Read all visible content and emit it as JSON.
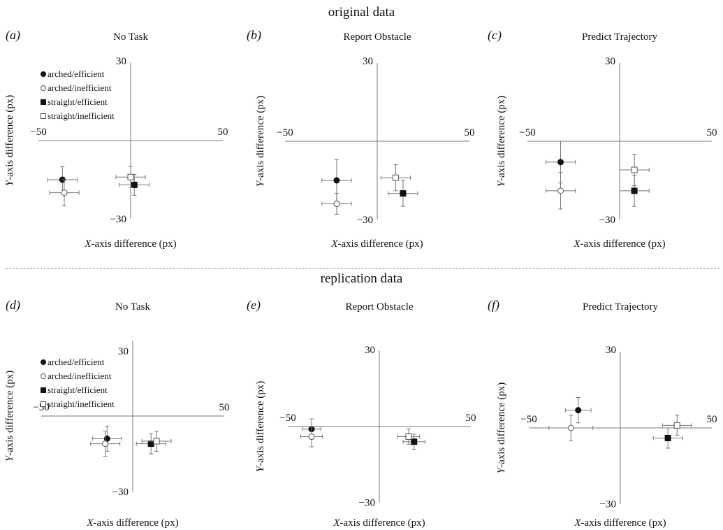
{
  "sections": [
    {
      "title": "original data"
    },
    {
      "title": "replication data"
    }
  ],
  "chart_data": [
    {
      "type": "scatter",
      "letter": "a",
      "title": "No Task",
      "show_legend": true,
      "xlabel_prefix": "X",
      "xlabel_rest": "-axis difference (px)",
      "ylabel_prefix": "Y",
      "ylabel_rest": "-axis difference (px)",
      "xlim": [
        -50,
        50
      ],
      "ylim": [
        -30,
        30
      ],
      "ticks": {
        "x_min": "−50",
        "x_max": "50",
        "y_min": "−30",
        "y_max": "30"
      },
      "series": [
        {
          "name": "arched/efficient",
          "marker": "circle-filled",
          "x": -37,
          "y": -15,
          "xerr": 8,
          "yerr": 5
        },
        {
          "name": "arched/inefficient",
          "marker": "circle-open",
          "x": -36,
          "y": -20,
          "xerr": 8,
          "yerr": 5
        },
        {
          "name": "straight/efficient",
          "marker": "square-filled",
          "x": 2,
          "y": -17,
          "xerr": 8,
          "yerr": 4
        },
        {
          "name": "straight/inefficient",
          "marker": "square-open",
          "x": 0,
          "y": -14,
          "xerr": 8,
          "yerr": 4
        }
      ]
    },
    {
      "type": "scatter",
      "letter": "b",
      "title": "Report Obstacle",
      "show_legend": false,
      "xlabel_prefix": "X",
      "xlabel_rest": "-axis difference (px)",
      "ylabel_prefix": "Y",
      "ylabel_rest": "-axis difference (px)",
      "xlim": [
        -50,
        50
      ],
      "ylim": [
        -30,
        30
      ],
      "ticks": {
        "x_min": "−50",
        "x_max": "50",
        "y_min": "−30",
        "y_max": "30"
      },
      "series": [
        {
          "name": "arched/efficient",
          "marker": "circle-filled",
          "x": -22,
          "y": -15,
          "xerr": 8,
          "yerr": 8
        },
        {
          "name": "arched/inefficient",
          "marker": "circle-open",
          "x": -22,
          "y": -24,
          "xerr": 8,
          "yerr": 4
        },
        {
          "name": "straight/efficient",
          "marker": "square-filled",
          "x": 14,
          "y": -20,
          "xerr": 8,
          "yerr": 5
        },
        {
          "name": "straight/inefficient",
          "marker": "square-open",
          "x": 10,
          "y": -14,
          "xerr": 8,
          "yerr": 5
        }
      ]
    },
    {
      "type": "scatter",
      "letter": "c",
      "title": "Predict Trajectory",
      "show_legend": false,
      "xlabel_prefix": "X",
      "xlabel_rest": "-axis difference (px)",
      "ylabel_prefix": "Y",
      "ylabel_rest": "-axis difference (px)",
      "xlim": [
        -50,
        50
      ],
      "ylim": [
        -30,
        30
      ],
      "ticks": {
        "x_min": "−50",
        "x_max": "50",
        "y_min": "−30",
        "y_max": "30"
      },
      "series": [
        {
          "name": "arched/efficient",
          "marker": "circle-filled",
          "x": -32,
          "y": -8,
          "xerr": 8,
          "yerr": 8
        },
        {
          "name": "arched/inefficient",
          "marker": "circle-open",
          "x": -32,
          "y": -19,
          "xerr": 8,
          "yerr": 7
        },
        {
          "name": "straight/efficient",
          "marker": "square-filled",
          "x": 8,
          "y": -19,
          "xerr": 8,
          "yerr": 6
        },
        {
          "name": "straight/inefficient",
          "marker": "square-open",
          "x": 8,
          "y": -11,
          "xerr": 8,
          "yerr": 6
        }
      ]
    },
    {
      "type": "scatter",
      "letter": "d",
      "title": "No Task",
      "show_legend": true,
      "xlabel_prefix": "X",
      "xlabel_rest": "-axis difference (px)",
      "ylabel_prefix": "Y",
      "ylabel_rest": "-axis difference (px)",
      "xlim": [
        -50,
        50
      ],
      "ylim": [
        -30,
        30
      ],
      "ticks": {
        "x_min": "−50",
        "x_max": "50",
        "y_min": "−30",
        "y_max": "30"
      },
      "series": [
        {
          "name": "arched/efficient",
          "marker": "circle-filled",
          "x": -14,
          "y": -9,
          "xerr": 8,
          "yerr": 5
        },
        {
          "name": "arched/inefficient",
          "marker": "circle-open",
          "x": -15,
          "y": -11,
          "xerr": 8,
          "yerr": 5
        },
        {
          "name": "straight/efficient",
          "marker": "square-filled",
          "x": 10,
          "y": -11,
          "xerr": 8,
          "yerr": 4
        },
        {
          "name": "straight/inefficient",
          "marker": "square-open",
          "x": 13,
          "y": -10,
          "xerr": 8,
          "yerr": 4
        }
      ]
    },
    {
      "type": "scatter",
      "letter": "e",
      "title": "Report Obstacle",
      "show_legend": false,
      "xlabel_prefix": "X",
      "xlabel_rest": "-axis difference (px)",
      "ylabel_prefix": "Y",
      "ylabel_rest": "-axis difference (px)",
      "xlim": [
        -50,
        50
      ],
      "ylim": [
        -30,
        30
      ],
      "ticks": {
        "x_min": "−50",
        "x_max": "50",
        "y_min": "−30",
        "y_max": "30"
      },
      "series": [
        {
          "name": "arched/efficient",
          "marker": "circle-filled",
          "x": -37,
          "y": -1,
          "xerr": 5,
          "yerr": 4
        },
        {
          "name": "arched/inefficient",
          "marker": "circle-open",
          "x": -37,
          "y": -4,
          "xerr": 6,
          "yerr": 4
        },
        {
          "name": "straight/efficient",
          "marker": "square-filled",
          "x": 19,
          "y": -6,
          "xerr": 6,
          "yerr": 3
        },
        {
          "name": "straight/inefficient",
          "marker": "square-open",
          "x": 16,
          "y": -4,
          "xerr": 6,
          "yerr": 3
        }
      ]
    },
    {
      "type": "scatter",
      "letter": "f",
      "title": "Predict Trajectory",
      "show_legend": false,
      "xlabel_prefix": "X",
      "xlabel_rest": "-axis difference (px)",
      "ylabel_prefix": "Y",
      "ylabel_rest": "-axis difference (px)",
      "xlim": [
        -50,
        50
      ],
      "ylim": [
        -30,
        30
      ],
      "ticks": {
        "x_min": "−50",
        "x_max": "50",
        "y_min": "−30",
        "y_max": "30"
      },
      "series": [
        {
          "name": "arched/efficient",
          "marker": "circle-filled",
          "x": -23,
          "y": 7,
          "xerr": 7,
          "yerr": 5
        },
        {
          "name": "arched/inefficient",
          "marker": "circle-open",
          "x": -27,
          "y": 0,
          "xerr": 12,
          "yerr": 5
        },
        {
          "name": "straight/efficient",
          "marker": "square-filled",
          "x": 26,
          "y": -4,
          "xerr": 8,
          "yerr": 4
        },
        {
          "name": "straight/inefficient",
          "marker": "square-open",
          "x": 31,
          "y": 1,
          "xerr": 8,
          "yerr": 4
        }
      ]
    }
  ]
}
